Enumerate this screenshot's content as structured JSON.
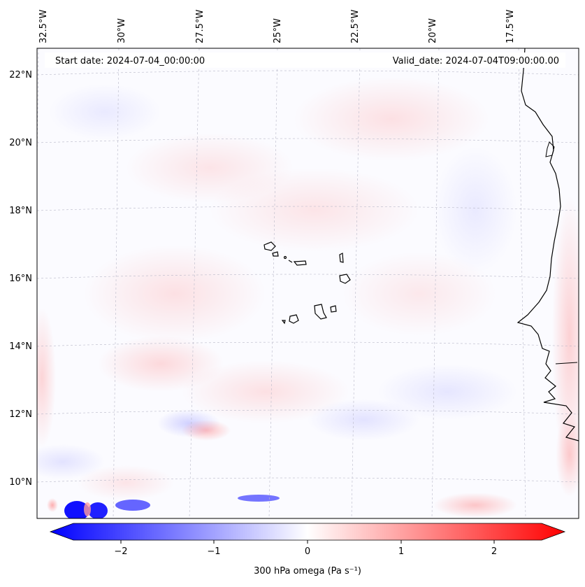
{
  "map": {
    "start_label": "Start date: 2024-07-04_00:00:00",
    "valid_label": "Valid_date: 2024-07-04T09:00:00.00",
    "lon_labels": [
      "32.5°W",
      "30°W",
      "27.5°W",
      "25°W",
      "22.5°W",
      "20°W",
      "17.5°W"
    ],
    "lat_labels": [
      "22°N",
      "20°N",
      "18°N",
      "16°N",
      "14°N",
      "12°N",
      "10°N"
    ],
    "variable": "300 hPa omega",
    "units": "Pa s⁻¹"
  },
  "colorbar": {
    "label": "300 hPa omega (Pa s⁻¹)",
    "ticks": [
      "−2",
      "−1",
      "0",
      "1",
      "2"
    ],
    "min": -2.75,
    "max": 2.75,
    "colors": {
      "negative": "#0000ff",
      "neutral": "#ffffff",
      "positive": "#ff0000"
    }
  }
}
